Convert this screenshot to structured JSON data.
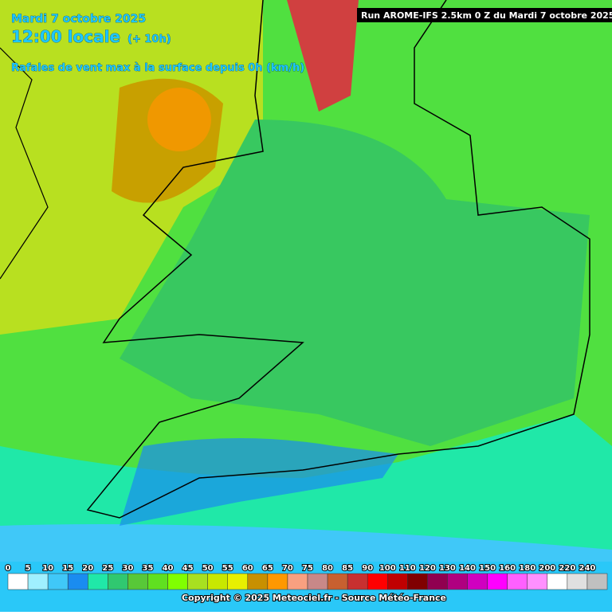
{
  "header": {
    "date": "Mardi 7 octobre 2025",
    "time": "12:00 locale",
    "offset": "(+ 10h)",
    "field": "Rafales de vent max à la surface depuis 0h (km/h)",
    "run": "Run AROME-IFS 2.5km 0 Z du Mardi 7 octobre 2025"
  },
  "legend": {
    "values": [
      0,
      5,
      10,
      15,
      20,
      25,
      30,
      35,
      40,
      45,
      50,
      55,
      60,
      65,
      70,
      75,
      80,
      85,
      90,
      100,
      110,
      120,
      130,
      140,
      150,
      160,
      180,
      200,
      220,
      240
    ],
    "colors": [
      "#ffffff",
      "#a0f0ff",
      "#40c8f8",
      "#1a8cf0",
      "#20e8a8",
      "#30c870",
      "#58c838",
      "#60e020",
      "#80ff00",
      "#a8e020",
      "#c8e800",
      "#e8f000",
      "#c89000",
      "#ff9800",
      "#f8a080",
      "#c88888",
      "#c86030",
      "#c83030",
      "#ff0000",
      "#c00000",
      "#800000",
      "#900050",
      "#b00080",
      "#d000c0",
      "#ff00ff",
      "#ff60ff",
      "#ff90ff",
      "#ffffff",
      "#e0e0e0",
      "#c0c0c0"
    ]
  },
  "footer": "Copyright © 2025 Meteociel.fr - Source Météo-France"
}
